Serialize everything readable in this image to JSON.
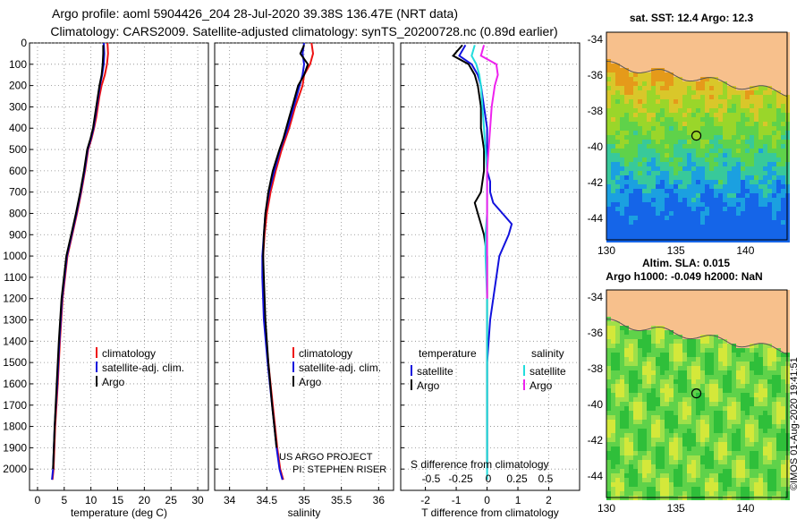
{
  "header": {
    "line1": "Argo profile: aoml 5904426_204 28-Jul-2020 39.38S 136.47E (NRT data)",
    "line2": "Climatology: CARS2009. Satellite-adjusted climatology: synTS_20200728.nc (0.89d earlier)"
  },
  "credit": "US ARGO PROJECT",
  "pi": "PI: STEPHEN RISER",
  "timestamp": "©IMOS 01-Aug-2020 19:41:51",
  "colors": {
    "clim": "#ee1111",
    "sat": "#1111dd",
    "argo": "#000000",
    "s_sat": "#22dddd",
    "s_argo": "#ee22ee"
  },
  "chart_data": [
    {
      "type": "line",
      "xlabel": "temperature (deg C)",
      "xlim": [
        -1.5,
        32
      ],
      "xticks": [
        0,
        5,
        10,
        15,
        20,
        25,
        30
      ],
      "ylim": [
        2100,
        0
      ],
      "yticks": [
        0,
        100,
        200,
        300,
        400,
        500,
        600,
        700,
        800,
        900,
        1000,
        1100,
        1200,
        1300,
        1400,
        1500,
        1600,
        1700,
        1800,
        1900,
        2000
      ],
      "grid": true,
      "legend": [
        "climatology",
        "satellite-adj. clim.",
        "Argo"
      ],
      "series": [
        {
          "name": "climatology",
          "color": "#ee1111",
          "x": [
            13.1,
            13.2,
            13.0,
            12.6,
            12.0,
            11.6,
            11.3,
            11.0,
            10.6,
            10.1,
            9.5,
            8.9,
            8.2,
            7.4,
            6.5,
            5.6,
            4.7,
            4.2,
            3.8,
            3.3,
            3.0,
            2.8
          ],
          "y": [
            0,
            50,
            100,
            150,
            200,
            250,
            300,
            350,
            400,
            450,
            500,
            600,
            700,
            800,
            900,
            1000,
            1200,
            1400,
            1600,
            1800,
            2000,
            2050
          ]
        },
        {
          "name": "satellite-adj. clim.",
          "color": "#1111dd",
          "x": [
            12.4,
            12.5,
            12.4,
            12.1,
            11.7,
            11.4,
            11.1,
            10.8,
            10.5,
            10.0,
            9.4,
            8.8,
            8.1,
            7.3,
            6.4,
            5.5,
            4.6,
            4.1,
            3.7,
            3.2,
            2.9,
            2.7
          ],
          "y": [
            0,
            50,
            100,
            150,
            200,
            250,
            300,
            350,
            400,
            450,
            500,
            600,
            700,
            800,
            900,
            1000,
            1200,
            1400,
            1600,
            1800,
            2000,
            2050
          ]
        },
        {
          "name": "Argo",
          "color": "#000000",
          "x": [
            12.3,
            12.3,
            12.2,
            12.0,
            11.6,
            11.3,
            11.0,
            10.7,
            10.4,
            9.9,
            9.3,
            8.7,
            8.0,
            7.2,
            6.3,
            5.4,
            4.5,
            4.0,
            3.6,
            3.2,
            2.9
          ],
          "y": [
            10,
            50,
            100,
            150,
            200,
            250,
            300,
            350,
            400,
            450,
            500,
            600,
            700,
            800,
            900,
            1000,
            1200,
            1400,
            1600,
            1800,
            2000
          ]
        }
      ]
    },
    {
      "type": "line",
      "xlabel": "salinity",
      "xlim": [
        33.8,
        36.2
      ],
      "xticks": [
        34,
        34.5,
        35,
        35.5,
        36
      ],
      "ylim": [
        2100,
        0
      ],
      "grid": true,
      "legend": [
        "climatology",
        "satellite-adj. clim.",
        "Argo"
      ],
      "series": [
        {
          "name": "climatology",
          "color": "#ee1111",
          "x": [
            35.1,
            35.12,
            35.08,
            35.0,
            34.98,
            34.93,
            34.88,
            34.84,
            34.8,
            34.75,
            34.7,
            34.62,
            34.55,
            34.5,
            34.47,
            34.45,
            34.45,
            34.47,
            34.52,
            34.58,
            34.64,
            34.68,
            34.72
          ],
          "y": [
            0,
            50,
            100,
            150,
            200,
            250,
            300,
            350,
            400,
            450,
            500,
            600,
            700,
            800,
            900,
            1000,
            1100,
            1300,
            1500,
            1700,
            1900,
            2000,
            2050
          ]
        },
        {
          "name": "satellite-adj. clim.",
          "color": "#1111dd",
          "x": [
            35.0,
            34.98,
            35.0,
            34.98,
            34.94,
            34.9,
            34.86,
            34.82,
            34.78,
            34.73,
            34.68,
            34.6,
            34.53,
            34.48,
            34.46,
            34.44,
            34.44,
            34.46,
            34.51,
            34.57,
            34.63,
            34.67,
            34.71
          ],
          "y": [
            0,
            50,
            100,
            150,
            200,
            250,
            300,
            350,
            400,
            450,
            500,
            600,
            700,
            800,
            900,
            1000,
            1100,
            1300,
            1500,
            1700,
            1900,
            2000,
            2050
          ]
        },
        {
          "name": "Argo",
          "color": "#000000",
          "x": [
            35.0,
            34.95,
            35.05,
            35.0,
            34.92,
            34.88,
            34.84,
            34.8,
            34.76,
            34.72,
            34.67,
            34.58,
            34.52,
            34.48,
            34.46,
            34.45,
            34.46,
            34.48,
            34.52,
            34.57,
            34.63
          ],
          "y": [
            10,
            50,
            100,
            150,
            200,
            250,
            300,
            350,
            400,
            450,
            500,
            600,
            700,
            800,
            900,
            1000,
            1100,
            1300,
            1500,
            1700,
            1900
          ]
        }
      ]
    },
    {
      "type": "line",
      "xlabel": "T difference from climatology",
      "xlim": [
        -2.8,
        3.0
      ],
      "xticks": [
        -2,
        -1,
        0,
        1,
        2
      ],
      "ylim": [
        2100,
        0
      ],
      "grid": true,
      "s_axis_label": "S difference from climatology",
      "s_xticks": [
        "-0.5",
        "-0.25",
        "0",
        "0.25",
        "0.5"
      ],
      "legend_left_title": "temperature",
      "legend_right_title": "salinity",
      "legend": [
        "satellite",
        "Argo",
        "satellite",
        "Argo"
      ],
      "series": [
        {
          "name": "satellite",
          "color": "#1111dd",
          "x": [
            -0.7,
            -0.9,
            -0.5,
            -0.3,
            -0.2,
            -0.1,
            0.0,
            0.0,
            0.0,
            0.1,
            0.1,
            0.2,
            0.5,
            0.8,
            0.7,
            0.4,
            0.3,
            0.1,
            0.0,
            0.0,
            0.0
          ],
          "y": [
            10,
            60,
            100,
            150,
            200,
            300,
            400,
            500,
            600,
            650,
            700,
            750,
            800,
            850,
            900,
            1000,
            1100,
            1300,
            1500,
            1800,
            2000
          ]
        },
        {
          "name": "Argo",
          "color": "#000000",
          "x": [
            -0.8,
            -1.1,
            -0.6,
            -0.4,
            -0.3,
            -0.2,
            -0.2,
            -0.1,
            -0.1,
            -0.2,
            -0.4,
            -0.3,
            -0.2,
            -0.1,
            0.0,
            0.0,
            0.0,
            0.0,
            0.0
          ],
          "y": [
            10,
            60,
            100,
            150,
            200,
            300,
            400,
            500,
            600,
            700,
            750,
            800,
            850,
            900,
            1000,
            1200,
            1500,
            1800,
            2000
          ]
        },
        {
          "name": "satellite",
          "color": "#22dddd",
          "x": [
            -0.4,
            -0.5,
            -0.35,
            -0.25,
            -0.2,
            -0.15,
            -0.1,
            -0.05,
            0.0,
            0.0,
            0.0,
            -0.05,
            -0.05,
            0.0,
            0.0,
            0.0
          ],
          "y": [
            10,
            60,
            100,
            150,
            200,
            300,
            400,
            500,
            600,
            700,
            800,
            900,
            1000,
            1200,
            1500,
            2050
          ]
        },
        {
          "name": "Argo",
          "color": "#ee22ee",
          "x": [
            -0.1,
            -0.2,
            0.3,
            0.35,
            0.25,
            0.15,
            0.1,
            0.05,
            0.0,
            0.0,
            0.0,
            0.0
          ],
          "y": [
            10,
            60,
            100,
            150,
            200,
            300,
            400,
            500,
            600,
            800,
            1000,
            1200
          ]
        }
      ]
    },
    {
      "type": "heatmap",
      "title": "sat.  SST: 12.4 Argo: 12.3",
      "xticks": [
        130,
        135,
        140
      ],
      "yticks": [
        -34,
        -36,
        -38,
        -40,
        -42,
        -44
      ],
      "xlim": [
        130,
        143
      ],
      "ylim": [
        -45.2,
        -33.6
      ],
      "marker": [
        136.47,
        -39.38
      ]
    },
    {
      "type": "heatmap",
      "title": "Altim.  SLA: 0.015",
      "subtitle": "Argo h1000: -0.049 h2000: NaN",
      "xticks": [
        130,
        135,
        140
      ],
      "yticks": [
        -34,
        -36,
        -38,
        -40,
        -42,
        -44
      ],
      "xlim": [
        130,
        143
      ],
      "ylim": [
        -45.2,
        -33.6
      ],
      "marker": [
        136.47,
        -39.38
      ]
    }
  ]
}
